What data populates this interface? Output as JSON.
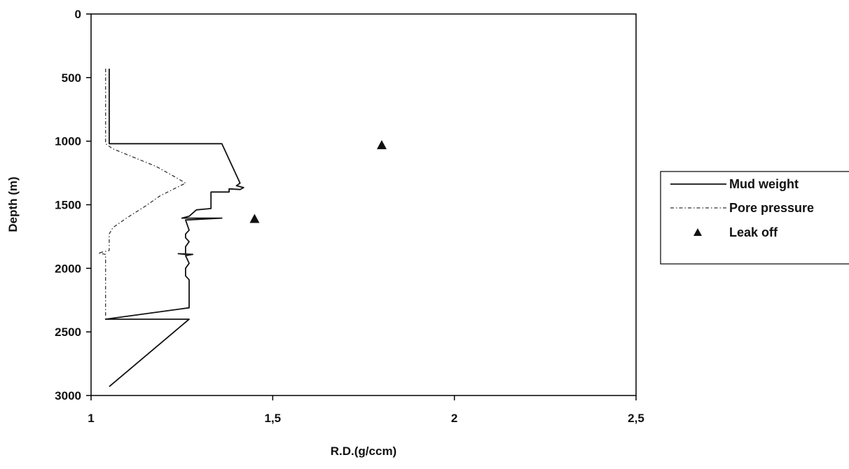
{
  "chart_data": {
    "type": "line",
    "xlabel": "R.D.(g/ccm)",
    "ylabel": "Depth (m)",
    "xlim": [
      1,
      2.5
    ],
    "ylim": [
      0,
      3000
    ],
    "y_inverted": true,
    "x_ticks": [
      1,
      1.5,
      2,
      2.5
    ],
    "x_tick_labels": [
      "1",
      "1,5",
      "2",
      "2,5"
    ],
    "y_ticks": [
      0,
      500,
      1000,
      1500,
      2000,
      2500,
      3000
    ],
    "y_tick_labels": [
      "0",
      "500",
      "1000",
      "1500",
      "2000",
      "2500",
      "3000"
    ],
    "grid": false,
    "legend_position": "right",
    "series": [
      {
        "name": "Mud weight",
        "style": "solid",
        "color": "#111111",
        "points": [
          [
            1.05,
            430
          ],
          [
            1.05,
            1020
          ],
          [
            1.36,
            1020
          ],
          [
            1.41,
            1330
          ],
          [
            1.4,
            1350
          ],
          [
            1.42,
            1365
          ],
          [
            1.41,
            1380
          ],
          [
            1.38,
            1375
          ],
          [
            1.38,
            1400
          ],
          [
            1.33,
            1400
          ],
          [
            1.33,
            1530
          ],
          [
            1.29,
            1540
          ],
          [
            1.27,
            1590
          ],
          [
            1.25,
            1605
          ],
          [
            1.36,
            1605
          ],
          [
            1.26,
            1620
          ],
          [
            1.27,
            1700
          ],
          [
            1.26,
            1730
          ],
          [
            1.26,
            1760
          ],
          [
            1.27,
            1790
          ],
          [
            1.26,
            1830
          ],
          [
            1.26,
            1890
          ],
          [
            1.24,
            1885
          ],
          [
            1.28,
            1890
          ],
          [
            1.26,
            1900
          ],
          [
            1.27,
            1960
          ],
          [
            1.26,
            2000
          ],
          [
            1.26,
            2060
          ],
          [
            1.27,
            2090
          ],
          [
            1.27,
            2310
          ],
          [
            1.04,
            2400
          ],
          [
            1.27,
            2400
          ],
          [
            1.05,
            2930
          ]
        ]
      },
      {
        "name": "Pore pressure",
        "style": "dash-dot",
        "color": "#333333",
        "points": [
          [
            1.04,
            430
          ],
          [
            1.04,
            1020
          ],
          [
            1.06,
            1060
          ],
          [
            1.18,
            1200
          ],
          [
            1.23,
            1280
          ],
          [
            1.26,
            1330
          ],
          [
            1.19,
            1430
          ],
          [
            1.15,
            1510
          ],
          [
            1.1,
            1600
          ],
          [
            1.06,
            1680
          ],
          [
            1.05,
            1730
          ],
          [
            1.05,
            1860
          ],
          [
            1.02,
            1880
          ],
          [
            1.04,
            1890
          ],
          [
            1.04,
            2390
          ]
        ]
      },
      {
        "name": "Leak off",
        "style": "markers",
        "color": "#111111",
        "points": [
          [
            1.8,
            1030
          ],
          [
            1.45,
            1610
          ]
        ]
      }
    ]
  }
}
